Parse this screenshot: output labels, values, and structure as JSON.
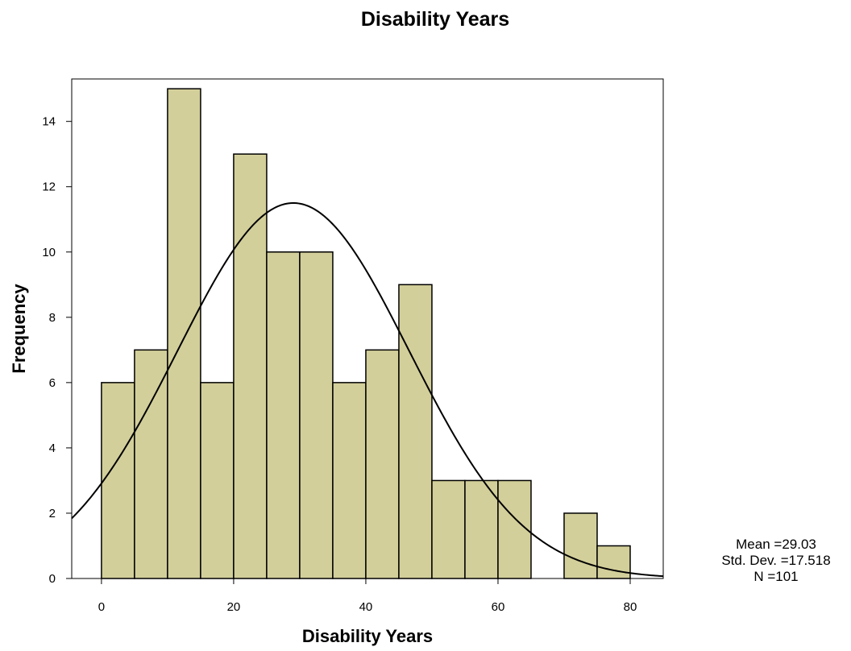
{
  "chart_data": {
    "type": "bar",
    "subtype": "histogram",
    "title": "Disability Years",
    "xlabel": "Disability Years",
    "ylabel": "Frequency",
    "xlim": [
      -4.5,
      85
    ],
    "ylim": [
      0,
      15.3
    ],
    "x_ticks": [
      0,
      20,
      40,
      60,
      80
    ],
    "y_ticks": [
      0,
      2,
      4,
      6,
      8,
      10,
      12,
      14
    ],
    "bin_width": 5,
    "bins": [
      {
        "start": 0,
        "count": 6
      },
      {
        "start": 5,
        "count": 7
      },
      {
        "start": 10,
        "count": 15
      },
      {
        "start": 15,
        "count": 6
      },
      {
        "start": 20,
        "count": 13
      },
      {
        "start": 25,
        "count": 10
      },
      {
        "start": 30,
        "count": 10
      },
      {
        "start": 35,
        "count": 6
      },
      {
        "start": 40,
        "count": 7
      },
      {
        "start": 45,
        "count": 9
      },
      {
        "start": 50,
        "count": 3
      },
      {
        "start": 55,
        "count": 3
      },
      {
        "start": 60,
        "count": 3
      },
      {
        "start": 65,
        "count": 0
      },
      {
        "start": 70,
        "count": 2
      },
      {
        "start": 75,
        "count": 1
      }
    ],
    "normal_curve": {
      "mean": 29.03,
      "std_dev": 17.518,
      "n": 101
    },
    "bar_color": "#d3cf9a",
    "bar_edge_color": "#000000",
    "grid": false,
    "stats": {
      "mean_label": "Mean =29.03",
      "std_label": "Std. Dev. =17.518",
      "n_label": "N =101"
    }
  }
}
